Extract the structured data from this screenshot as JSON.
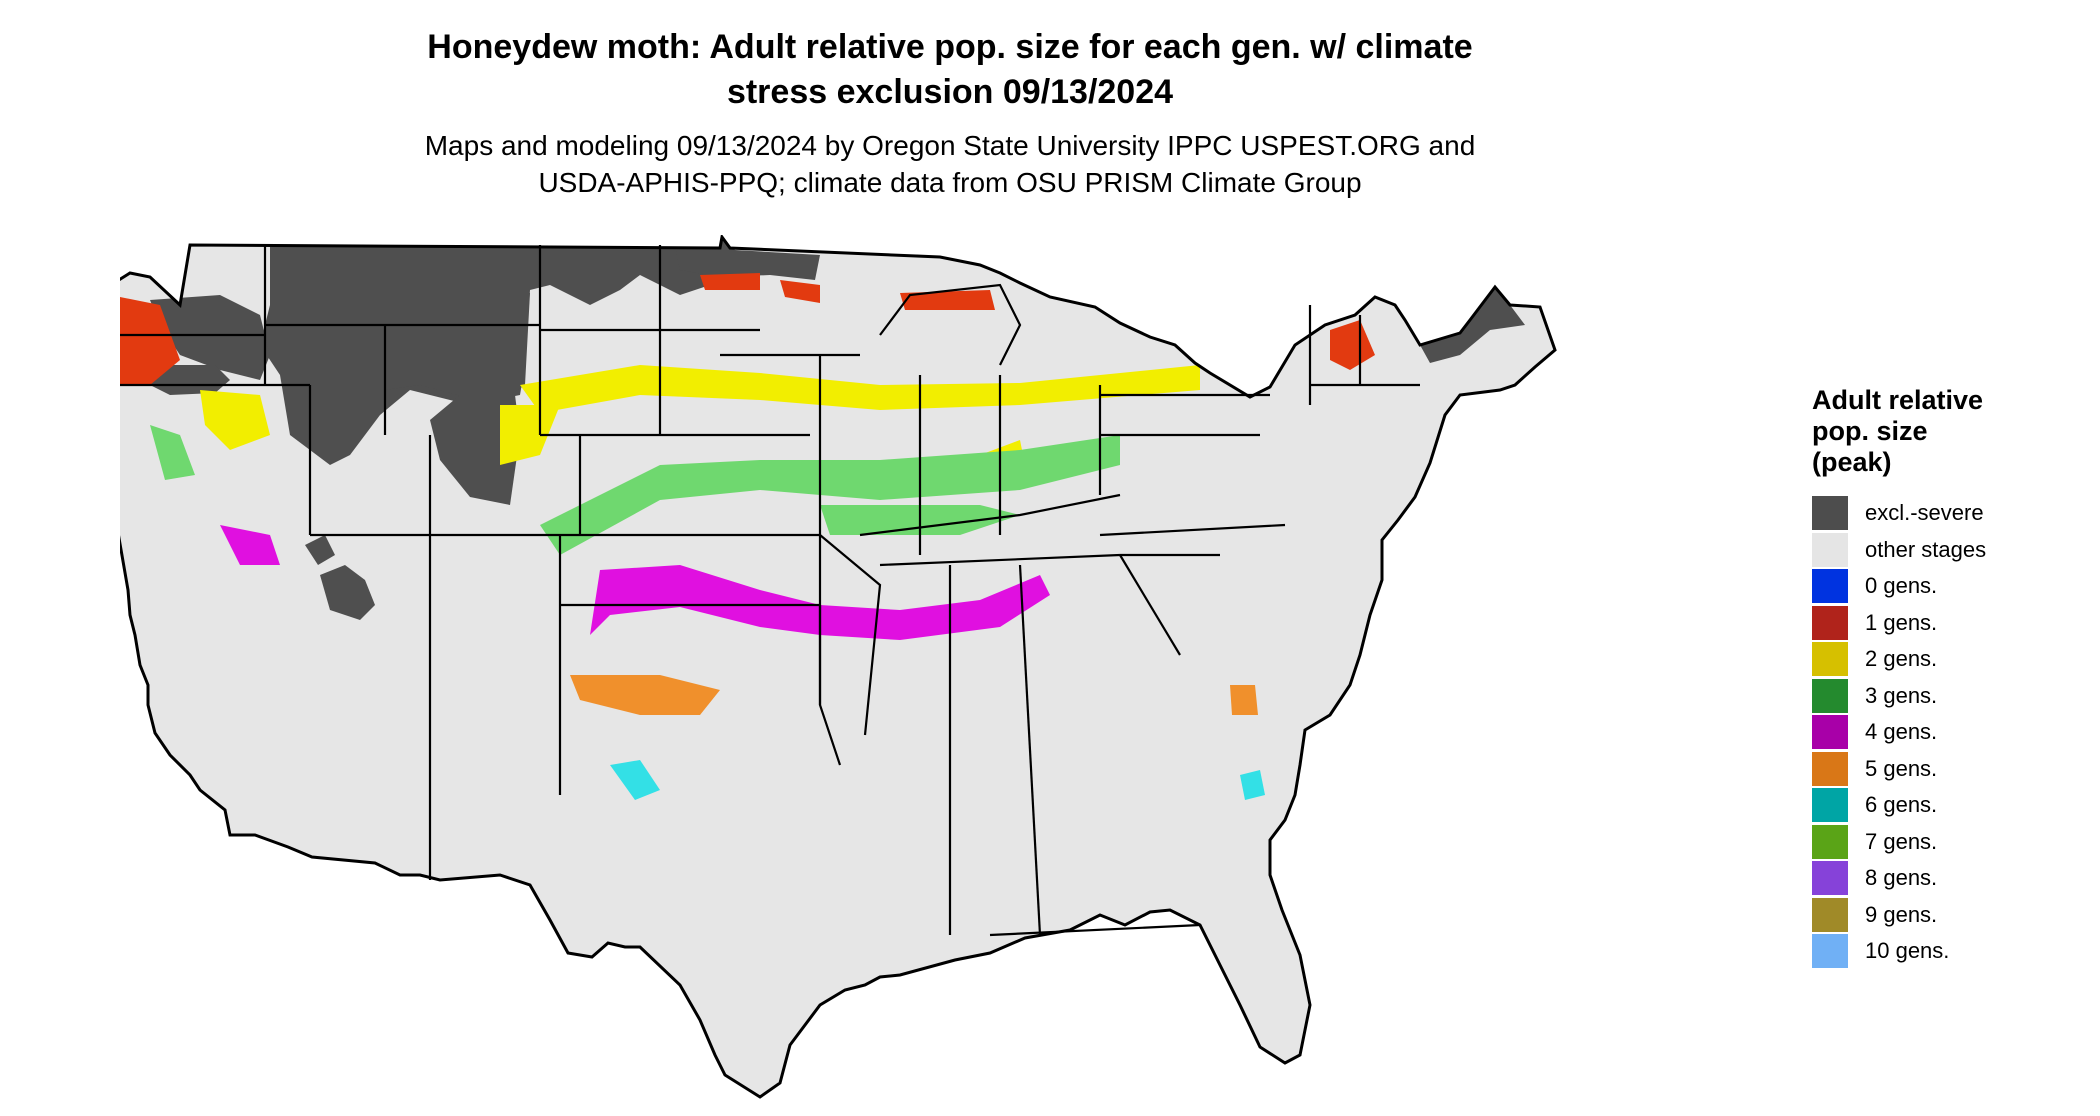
{
  "header": {
    "title_line1": "Honeydew moth: Adult relative pop. size for each gen. w/ climate",
    "title_line2": "stress exclusion 09/13/2024",
    "subtitle_line1": "Maps and modeling 09/13/2024 by Oregon State University IPPC USPEST.ORG and",
    "subtitle_line2": "USDA-APHIS-PPQ; climate data from OSU PRISM Climate Group"
  },
  "legend": {
    "title_line1": "Adult relative",
    "title_line2": "pop. size",
    "title_line3": "(peak)",
    "items": [
      {
        "label": "excl.-severe",
        "color": "#4d4d4d"
      },
      {
        "label": "other stages",
        "color": "#e5e5e5"
      },
      {
        "label": "0 gens.",
        "color": "#0033e0"
      },
      {
        "label": "1 gens.",
        "color": "#b0231b"
      },
      {
        "label": "2 gens.",
        "color": "#d6c000"
      },
      {
        "label": "3 gens.",
        "color": "#248a2e"
      },
      {
        "label": "4 gens.",
        "color": "#a800a8"
      },
      {
        "label": "5 gens.",
        "color": "#d97717"
      },
      {
        "label": "6 gens.",
        "color": "#00a5a5"
      },
      {
        "label": "7 gens.",
        "color": "#5aa417"
      },
      {
        "label": "8 gens.",
        "color": "#8642d9"
      },
      {
        "label": "9 gens.",
        "color": "#a08a28"
      },
      {
        "label": "10 gens.",
        "color": "#70b0f5"
      }
    ]
  },
  "map_colors": {
    "base": "#e6e6e6",
    "excluded": "#4f4f4f",
    "gen1": "#e23a10",
    "gen2": "#f2ee00",
    "gen3": "#6fd86f",
    "gen4": "#e010e0",
    "gen5": "#f0902c",
    "gen6": "#33e0e6"
  }
}
